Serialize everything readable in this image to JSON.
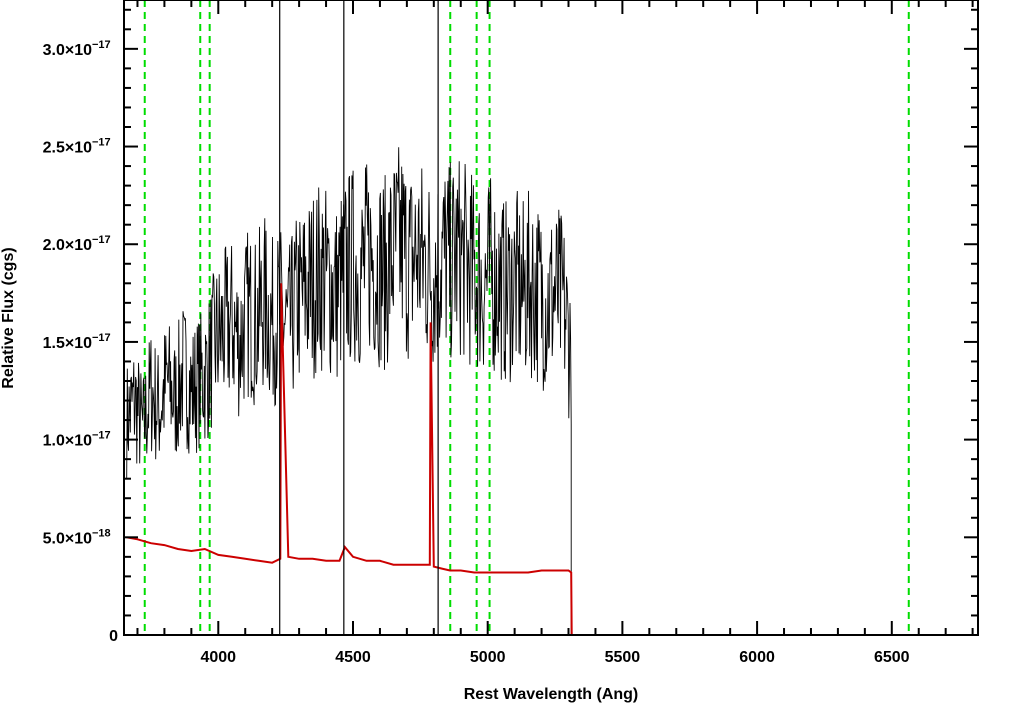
{
  "chart_data": {
    "type": "line",
    "xlabel": "Rest Wavelength (Ang)",
    "ylabel": "Relative Flux (cgs)",
    "xlim": [
      3650,
      6820
    ],
    "ylim": [
      0,
      3.25e-17
    ],
    "x_ticks": [
      {
        "value": 4000,
        "label": "4000"
      },
      {
        "value": 4500,
        "label": "4500"
      },
      {
        "value": 5000,
        "label": "5000"
      },
      {
        "value": 5500,
        "label": "5500"
      },
      {
        "value": 6000,
        "label": "6000"
      },
      {
        "value": 6500,
        "label": "6500"
      }
    ],
    "y_ticks": [
      {
        "value": 0,
        "mantissa": "0",
        "exponent": ""
      },
      {
        "value": 5e-18,
        "mantissa": "5.0×10",
        "exponent": "−18"
      },
      {
        "value": 1e-17,
        "mantissa": "1.0×10",
        "exponent": "−17"
      },
      {
        "value": 1.5e-17,
        "mantissa": "1.5×10",
        "exponent": "−17"
      },
      {
        "value": 2e-17,
        "mantissa": "2.0×10",
        "exponent": "−17"
      },
      {
        "value": 2.5e-17,
        "mantissa": "2.5×10",
        "exponent": "−17"
      },
      {
        "value": 3e-17,
        "mantissa": "3.0×10",
        "exponent": "−17"
      }
    ],
    "series": [
      {
        "color": "#000000",
        "x": [
          3660,
          3690,
          3720,
          3750,
          3780,
          3810,
          3840,
          3870,
          3900,
          3930,
          3960,
          3990,
          4020,
          4050,
          4080,
          4110,
          4140,
          4170,
          4200,
          4230,
          4260,
          4290,
          4320,
          4350,
          4380,
          4410,
          4440,
          4470,
          4500,
          4530,
          4560,
          4590,
          4620,
          4650,
          4680,
          4710,
          4740,
          4770,
          4800,
          4830,
          4860,
          4890,
          4920,
          4950,
          4980,
          5010,
          5040,
          5070,
          5100,
          5130,
          5160,
          5190,
          5220,
          5250,
          5280,
          5310
        ],
        "y": [
          1.1e-17,
          1.2e-17,
          1.05e-17,
          1.25e-17,
          1.15e-17,
          1.3e-17,
          1.2e-17,
          1.35e-17,
          1.25e-17,
          1.3e-17,
          1.35e-17,
          1.5e-17,
          1.55e-17,
          1.6e-17,
          1.5e-17,
          1.65e-17,
          1.6e-17,
          1.7e-17,
          1.6e-17,
          1.65e-17,
          1.55e-17,
          1.7e-17,
          1.75e-17,
          1.8e-17,
          1.85e-17,
          1.8e-17,
          1.75e-17,
          1.85e-17,
          1.9e-17,
          1.85e-17,
          1.95e-17,
          1.9e-17,
          1.85e-17,
          1.95e-17,
          2e-17,
          1.9e-17,
          1.95e-17,
          1.9e-17,
          1.85e-17,
          1.95e-17,
          1.9e-17,
          1.95e-17,
          1.9e-17,
          1.85e-17,
          1.8e-17,
          1.85e-17,
          1.8e-17,
          1.75e-17,
          1.8e-17,
          1.75e-17,
          1.8e-17,
          1.75e-17,
          1.7e-17,
          1.75e-17,
          1.7e-17,
          1.45e-17
        ]
      },
      {
        "color": "#cc0000",
        "x": [
          3660,
          3700,
          3750,
          3800,
          3850,
          3900,
          3950,
          4000,
          4050,
          4100,
          4150,
          4200,
          4230,
          4233,
          4260,
          4300,
          4350,
          4400,
          4450,
          4470,
          4500,
          4550,
          4600,
          4650,
          4700,
          4750,
          4785,
          4788,
          4800,
          4830,
          4860,
          4900,
          4950,
          5000,
          5050,
          5100,
          5150,
          5200,
          5250,
          5300,
          5310,
          5312,
          5400,
          5600,
          5800,
          6000,
          6200,
          6400,
          6600,
          6820
        ],
        "y": [
          5e-18,
          4.9e-18,
          4.7e-18,
          4.6e-18,
          4.4e-18,
          4.3e-18,
          4.4e-18,
          4.1e-18,
          4e-18,
          3.9e-18,
          3.8e-18,
          3.7e-18,
          3.9e-18,
          1.8e-17,
          4e-18,
          3.9e-18,
          3.9e-18,
          3.8e-18,
          3.8e-18,
          4.5e-18,
          4e-18,
          3.8e-18,
          3.8e-18,
          3.6e-18,
          3.6e-18,
          3.6e-18,
          3.6e-18,
          1.6e-17,
          3.5e-18,
          3.4e-18,
          3.3e-18,
          3.3e-18,
          3.2e-18,
          3.2e-18,
          3.2e-18,
          3.2e-18,
          3.2e-18,
          3.3e-18,
          3.3e-18,
          3.3e-18,
          3.2e-18,
          0,
          0,
          0,
          0,
          0,
          0,
          0,
          0,
          0
        ]
      }
    ],
    "vertical_markers": [
      {
        "x": 3727,
        "color": "#00dd00",
        "style": "dashed"
      },
      {
        "x": 3933,
        "color": "#00dd00",
        "style": "dashed"
      },
      {
        "x": 3968,
        "color": "#00dd00",
        "style": "dashed"
      },
      {
        "x": 4861,
        "color": "#00dd00",
        "style": "dashed"
      },
      {
        "x": 4959,
        "color": "#00dd00",
        "style": "dashed"
      },
      {
        "x": 5007,
        "color": "#00dd00",
        "style": "dashed"
      },
      {
        "x": 6563,
        "color": "#00dd00",
        "style": "dashed"
      }
    ],
    "spikes": [
      {
        "x": 4228,
        "color": "#000000"
      },
      {
        "x": 4466,
        "color": "#000000"
      },
      {
        "x": 4816,
        "color": "#000000"
      }
    ],
    "grid": false,
    "legend": "none"
  }
}
